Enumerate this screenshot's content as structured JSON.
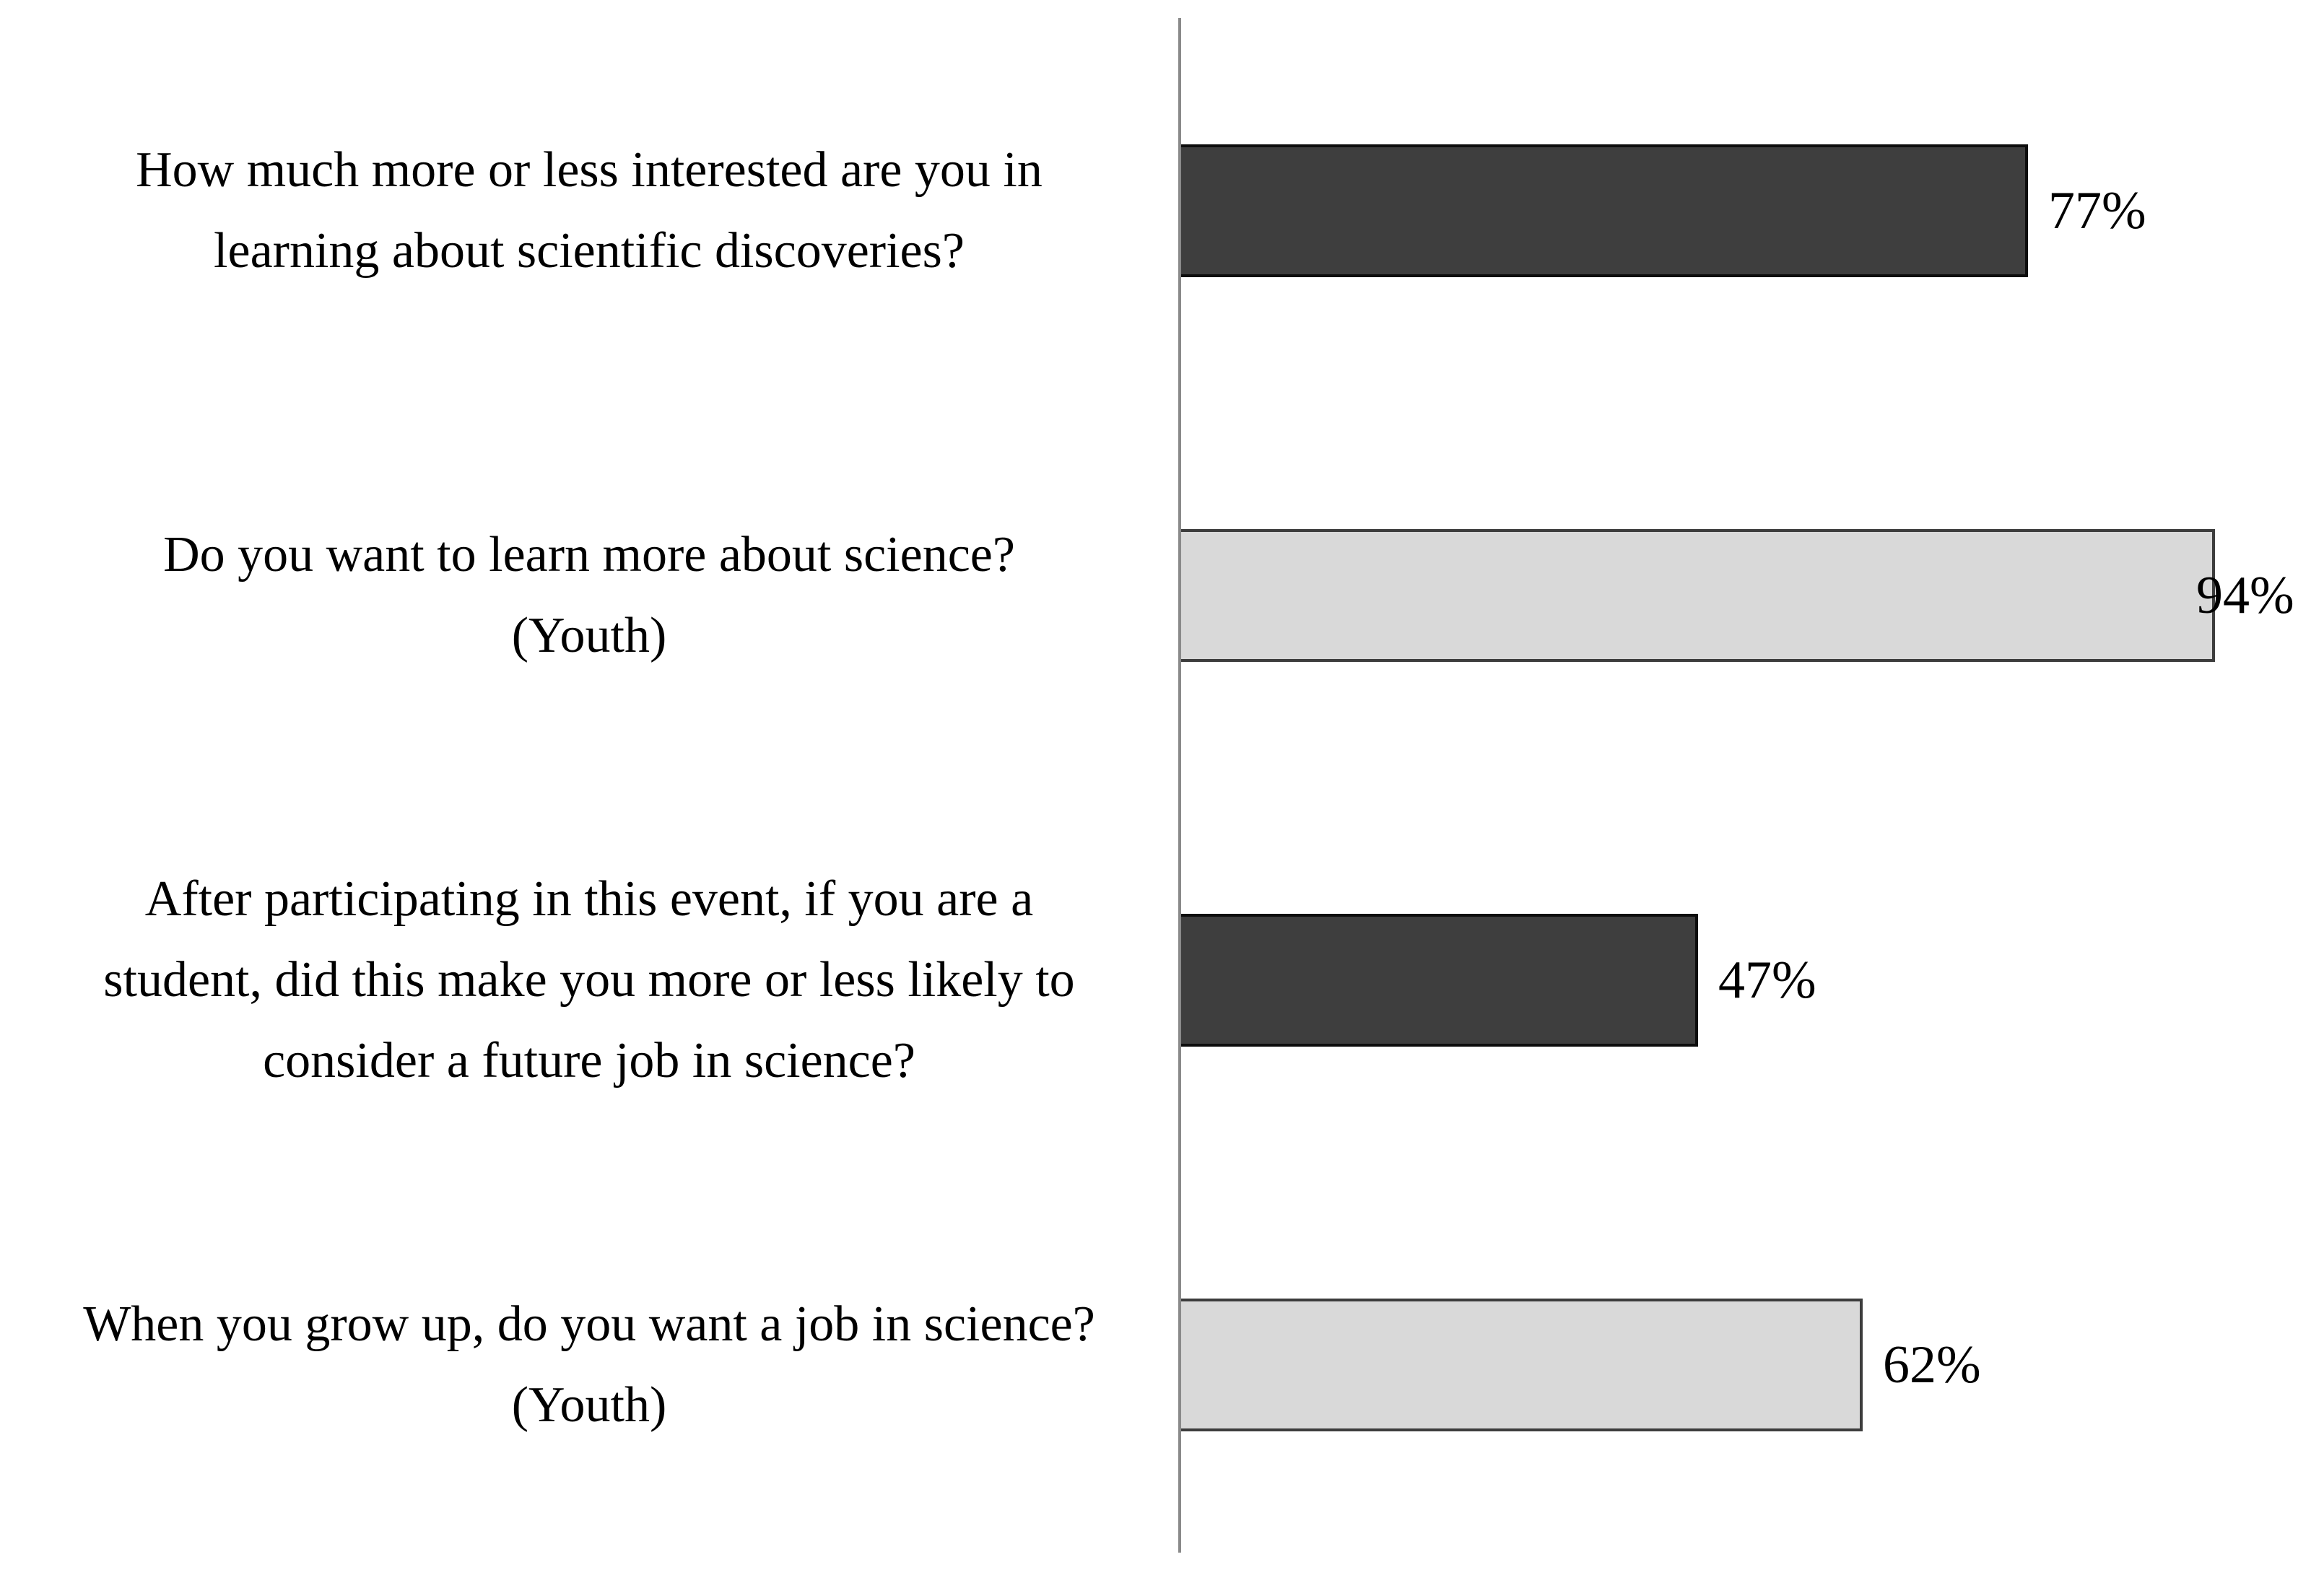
{
  "chart_data": {
    "type": "bar",
    "orientation": "horizontal",
    "title": "",
    "xlabel": "",
    "ylabel": "",
    "xlim": [
      0,
      100
    ],
    "grid": false,
    "legend": false,
    "categories": [
      [
        "How much more or less interested are you in",
        "learning about scientific discoveries?"
      ],
      [
        "Do you want to learn more about science?",
        "(Youth)"
      ],
      [
        "After participating in this event, if you are a",
        "student, did this make you more or less likely to",
        "consider a future job in science?"
      ],
      [
        "When you grow up, do you want a job in science?",
        "(Youth)"
      ]
    ],
    "values": [
      77,
      94,
      47,
      62
    ],
    "value_labels": [
      "77%",
      "94%",
      "47%",
      "62%"
    ],
    "bar_fill_colors": [
      "#3E3E3E",
      "#D9D9D9",
      "#3E3E3E",
      "#D9D9D9"
    ],
    "bar_border_colors": [
      "#0D0D0D",
      "#3D3D3D",
      "#0D0D0D",
      "#3D3D3D"
    ],
    "axis_line_color": "#8A8A8A",
    "text_color": "#000000",
    "background_color": "#FFFFFF"
  }
}
